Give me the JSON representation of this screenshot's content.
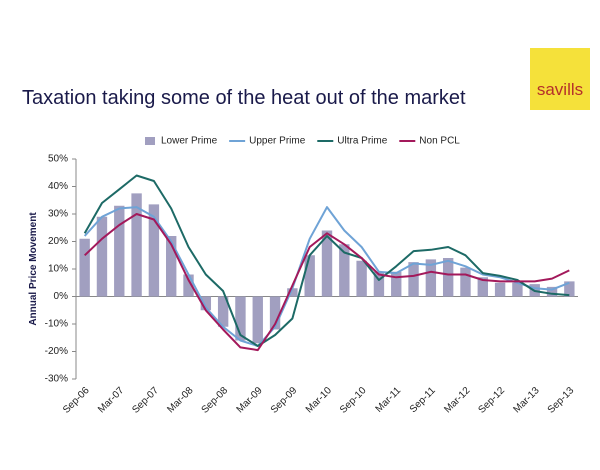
{
  "logo": "savills",
  "chart_data": {
    "type": "bar",
    "title": "Taxation taking some of the heat out of the market",
    "y_label": "Annual Price Movement",
    "categories": [
      "Sep-06",
      null,
      "Mar-07",
      null,
      "Sep-07",
      null,
      "Mar-08",
      null,
      "Sep-08",
      null,
      "Mar-09",
      null,
      "Sep-09",
      null,
      "Mar-10",
      null,
      "Sep-10",
      null,
      "Mar-11",
      null,
      "Sep-11",
      null,
      "Mar-12",
      null,
      "Sep-12",
      null,
      "Mar-13",
      null,
      "Sep-13"
    ],
    "series": [
      {
        "name": "Lower Prime",
        "type": "bar",
        "color": "#a19fc0",
        "values": [
          21,
          29,
          33,
          37.5,
          33.5,
          22,
          8,
          -5,
          -11,
          -16,
          -17,
          -12,
          3,
          15,
          24,
          19,
          13,
          9,
          9,
          12.5,
          13.5,
          14,
          10.5,
          7,
          5,
          5,
          4.5,
          3.5,
          5.5
        ]
      },
      {
        "name": "Upper Prime",
        "type": "line",
        "color": "#6fa3d6",
        "values": [
          22,
          29,
          32,
          32.5,
          29,
          20,
          8,
          -4,
          -11,
          -16,
          -18,
          -11,
          3,
          21,
          32.5,
          24,
          18,
          9,
          8.5,
          12,
          11.5,
          13,
          11,
          8,
          7,
          5,
          3,
          2.5,
          5
        ]
      },
      {
        "name": "Ultra Prime",
        "type": "line",
        "color": "#1d6a66",
        "values": [
          23,
          34,
          39,
          44,
          42,
          32,
          18,
          8,
          2,
          -14,
          -18,
          -14,
          -8,
          15,
          22,
          16,
          14,
          6,
          11,
          16.5,
          17,
          18,
          15,
          8.5,
          7.5,
          6,
          2,
          1,
          0.5
        ]
      },
      {
        "name": "Non PCL",
        "type": "line",
        "color": "#a3195b",
        "values": [
          15,
          21,
          26,
          30,
          28,
          19,
          6,
          -5,
          -12,
          -18.5,
          -19.5,
          -10,
          4,
          18,
          23,
          19,
          14,
          8,
          7,
          7.5,
          9,
          8,
          8,
          6,
          5.5,
          5.5,
          5.5,
          6.5,
          9.5
        ]
      }
    ],
    "ylim": [
      -30,
      50
    ],
    "yticks": [
      {
        "value": -30,
        "label": "-30%"
      },
      {
        "value": -20,
        "label": "-20%"
      },
      {
        "value": -10,
        "label": "-10%"
      },
      {
        "value": 0,
        "label": "0%"
      },
      {
        "value": 10,
        "label": "10%"
      },
      {
        "value": 20,
        "label": "20%"
      },
      {
        "value": 30,
        "label": "30%"
      },
      {
        "value": 40,
        "label": "40%"
      },
      {
        "value": 50,
        "label": "50%"
      }
    ],
    "legend": "top"
  }
}
